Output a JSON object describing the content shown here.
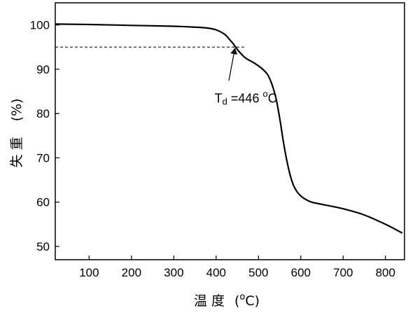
{
  "chart_data": {
    "type": "line",
    "xlabel_text": "温 度",
    "xlabel_unit_open": "(",
    "xlabel_unit_sup": "o",
    "xlabel_unit_main": "C)",
    "ylabel_text": "失 重",
    "ylabel_unit": "(%)",
    "xlim": [
      20,
      845
    ],
    "ylim": [
      47,
      105
    ],
    "x_ticks": [
      100,
      200,
      300,
      400,
      500,
      600,
      700,
      800
    ],
    "y_ticks": [
      50,
      60,
      70,
      80,
      90,
      100
    ],
    "grid": false,
    "series": [
      {
        "x": [
          20,
          100,
          200,
          300,
          350,
          380,
          400,
          420,
          430,
          440,
          446,
          455,
          470,
          490,
          510,
          525,
          540,
          550,
          560,
          570,
          580,
          590,
          600,
          610,
          625,
          650,
          700,
          750,
          800,
          840
        ],
        "y": [
          100.2,
          100.1,
          99.9,
          99.7,
          99.5,
          99.3,
          98.9,
          97.9,
          96.9,
          95.8,
          95.0,
          93.9,
          92.5,
          91.4,
          90.0,
          88.2,
          84.0,
          79.0,
          73.0,
          68.0,
          64.5,
          62.5,
          61.4,
          60.7,
          60.0,
          59.5,
          58.5,
          57.1,
          55.0,
          53.0
        ],
        "color": "#000000"
      }
    ],
    "reference_line": {
      "y": 95.0,
      "x_end": 470
    },
    "annotation": {
      "text_main": "T",
      "text_sub": "d",
      "text_value": " =446 ",
      "text_sup": "o",
      "text_unit": "C",
      "label_x": 470,
      "label_y": 82.5,
      "arrow_from": [
        430,
        87.4
      ],
      "arrow_to": [
        446,
        95.0
      ]
    }
  }
}
